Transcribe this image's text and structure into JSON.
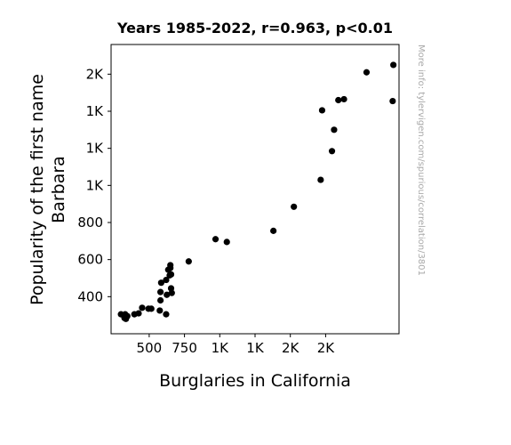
{
  "chart_data": {
    "type": "scatter",
    "title": "Years 1985-2022, r=0.963, p<0.01",
    "xlabel": "Burglaries in California",
    "ylabel_lines": [
      "Popularity of the first name",
      "Barbara"
    ],
    "watermark": "More info: tylervigen.com/spurious/correlation/3801",
    "xlim": [
      230,
      2270
    ],
    "ylim": [
      200,
      1760
    ],
    "x_ticks": [
      {
        "value": 500,
        "label": "500"
      },
      {
        "value": 750,
        "label": "750"
      },
      {
        "value": 1000,
        "label": "1K"
      },
      {
        "value": 1250,
        "label": "1K"
      },
      {
        "value": 1500,
        "label": "2K"
      },
      {
        "value": 1750,
        "label": "2K"
      }
    ],
    "y_ticks": [
      {
        "value": 400,
        "label": "400"
      },
      {
        "value": 600,
        "label": "600"
      },
      {
        "value": 800,
        "label": "800"
      },
      {
        "value": 1000,
        "label": "1K"
      },
      {
        "value": 1200,
        "label": "1K"
      },
      {
        "value": 1400,
        "label": "1K"
      },
      {
        "value": 1600,
        "label": "2K"
      }
    ],
    "marker_color": "#000000",
    "points": [
      {
        "x": 2230,
        "y": 1650
      },
      {
        "x": 2040,
        "y": 1610
      },
      {
        "x": 1880,
        "y": 1465
      },
      {
        "x": 2225,
        "y": 1455
      },
      {
        "x": 1840,
        "y": 1460
      },
      {
        "x": 1725,
        "y": 1405
      },
      {
        "x": 1810,
        "y": 1300
      },
      {
        "x": 1795,
        "y": 1185
      },
      {
        "x": 1715,
        "y": 1030
      },
      {
        "x": 1525,
        "y": 885
      },
      {
        "x": 1380,
        "y": 755
      },
      {
        "x": 1050,
        "y": 695
      },
      {
        "x": 970,
        "y": 710
      },
      {
        "x": 780,
        "y": 590
      },
      {
        "x": 650,
        "y": 570
      },
      {
        "x": 650,
        "y": 555
      },
      {
        "x": 635,
        "y": 545
      },
      {
        "x": 655,
        "y": 520
      },
      {
        "x": 645,
        "y": 515
      },
      {
        "x": 620,
        "y": 490
      },
      {
        "x": 585,
        "y": 475
      },
      {
        "x": 655,
        "y": 445
      },
      {
        "x": 660,
        "y": 420
      },
      {
        "x": 580,
        "y": 425
      },
      {
        "x": 625,
        "y": 410
      },
      {
        "x": 580,
        "y": 380
      },
      {
        "x": 450,
        "y": 340
      },
      {
        "x": 495,
        "y": 335
      },
      {
        "x": 515,
        "y": 335
      },
      {
        "x": 575,
        "y": 325
      },
      {
        "x": 425,
        "y": 310
      },
      {
        "x": 395,
        "y": 305
      },
      {
        "x": 300,
        "y": 305
      },
      {
        "x": 330,
        "y": 305
      },
      {
        "x": 345,
        "y": 295
      },
      {
        "x": 325,
        "y": 285
      },
      {
        "x": 335,
        "y": 280
      },
      {
        "x": 620,
        "y": 305
      }
    ]
  }
}
